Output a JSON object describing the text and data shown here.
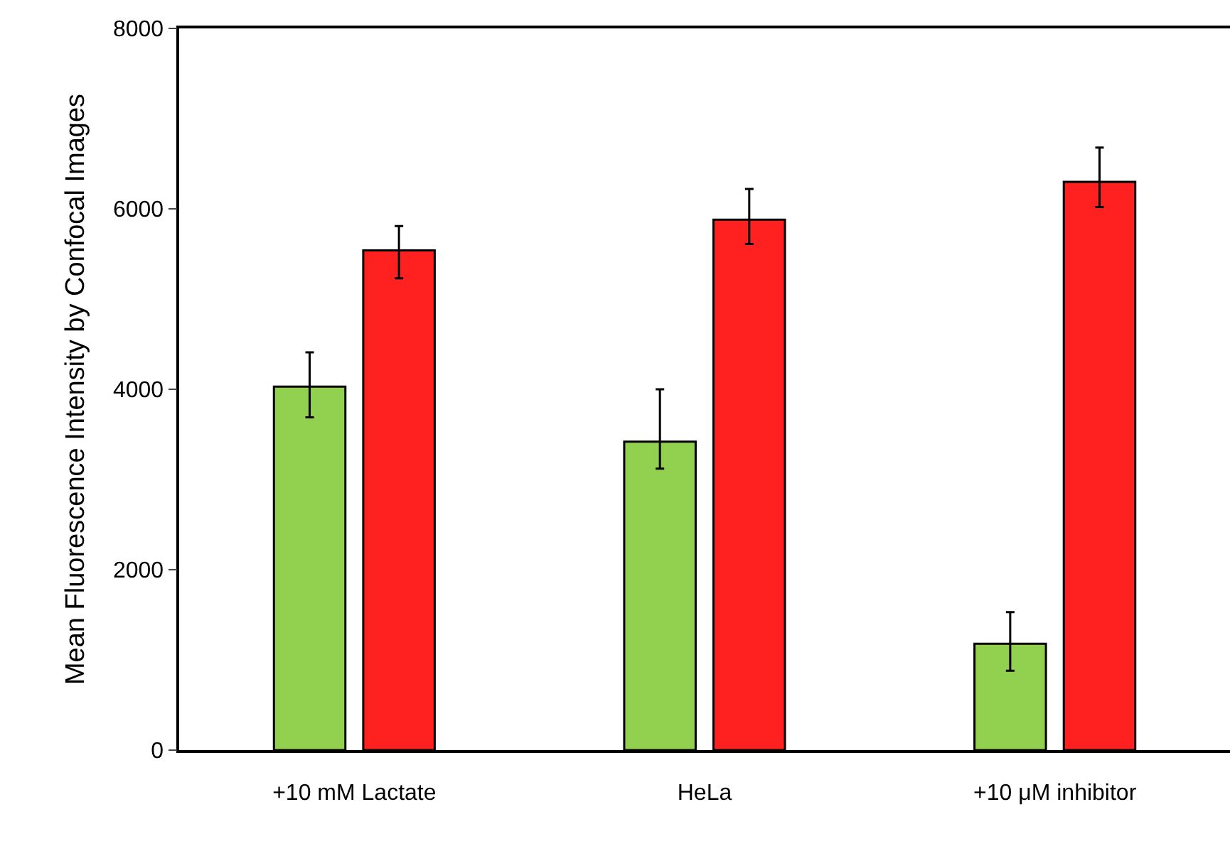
{
  "chart_data": {
    "type": "bar",
    "ylabel": "Mean Fluorescence Intensity by Confocal Images",
    "categories": [
      "+10 mM Lactate",
      "HeLa",
      "+10 μM inhibitor"
    ],
    "series": [
      {
        "color": "#92d050",
        "values": [
          4030,
          3420,
          1180
        ],
        "errors": [
          [
            3690,
            4410
          ],
          [
            3120,
            4000
          ],
          [
            880,
            1530
          ]
        ]
      },
      {
        "color": "#ff2020",
        "values": [
          5540,
          5880,
          6300
        ],
        "errors": [
          [
            5230,
            5810
          ],
          [
            5610,
            6220
          ],
          [
            6020,
            6680
          ]
        ]
      }
    ],
    "ylim": [
      0,
      8000
    ],
    "yticks": [
      0,
      2000,
      4000,
      6000,
      8000
    ]
  }
}
